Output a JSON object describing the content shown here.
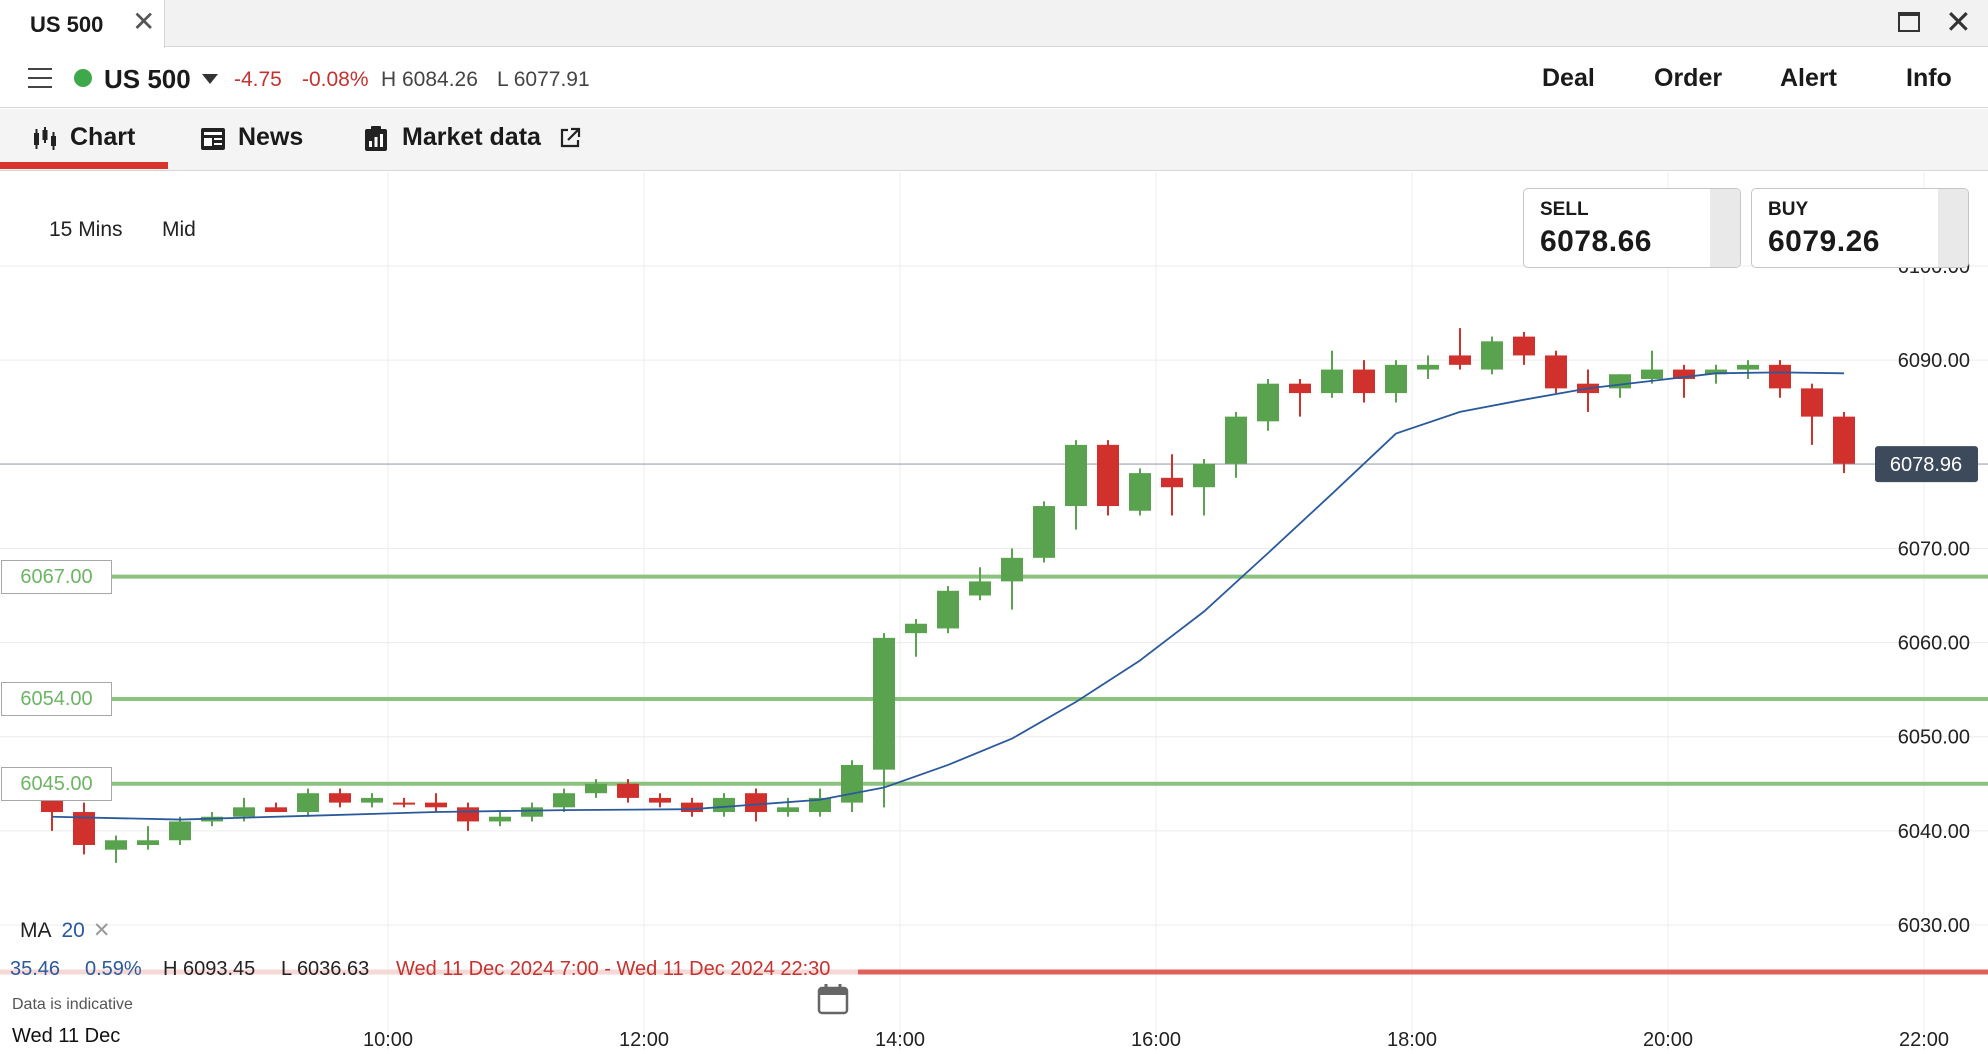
{
  "window": {
    "tab_title": "US 500",
    "close_glyph": "✕"
  },
  "header": {
    "instrument": "US 500",
    "change": "-4.75",
    "change_pct": "-0.08%",
    "high": "H 6084.26",
    "low": "L 6077.91",
    "actions": [
      "Deal",
      "Order",
      "Alert",
      "Info"
    ]
  },
  "subtabs": {
    "chart": "Chart",
    "news": "News",
    "market_data": "Market data"
  },
  "toolbar": {
    "timeframe": "15 Mins",
    "price_type": "Mid"
  },
  "quote": {
    "sell_label": "SELL",
    "sell": "6078.66",
    "buy_label": "BUY",
    "buy": "6079.26"
  },
  "levels": [
    "6067.00",
    "6054.00",
    "6045.00"
  ],
  "indicator": {
    "name": "MA",
    "period": "20",
    "remove_glyph": "✕"
  },
  "range_stats": {
    "change": "35.46",
    "change_pct": "0.59%",
    "high": "H 6093.45",
    "low": "L 6036.63",
    "period": "Wed 11 Dec 2024 7:00 - Wed 11 Dec 2024 22:30"
  },
  "note": "Data is indicative",
  "first_date": "Wed 11 Dec",
  "colors": {
    "up": "#5aa34e",
    "down": "#d0312d",
    "ma": "#2a5a9c",
    "level": "#8ac27e",
    "accent": "#d9342b"
  },
  "chart_data": {
    "type": "candlestick",
    "interval_minutes": 15,
    "ylim": [
      6024,
      6108
    ],
    "y_ticks": [
      "6100.00",
      "6090.00",
      "6070.00",
      "6060.00",
      "6050.00",
      "6040.00",
      "6030.00"
    ],
    "x_ticks": [
      "10:00",
      "12:00",
      "14:00",
      "16:00",
      "18:00",
      "20:00",
      "22:00"
    ],
    "current_price": "6078.96",
    "candles": [
      {
        "t": "07:30",
        "o": 6043.5,
        "h": 6044.5,
        "l": 6040.0,
        "c": 6042.0
      },
      {
        "t": "07:45",
        "o": 6042.0,
        "h": 6043.0,
        "l": 6037.5,
        "c": 6038.5
      },
      {
        "t": "08:00",
        "o": 6038.0,
        "h": 6039.5,
        "l": 6036.6,
        "c": 6039.0
      },
      {
        "t": "08:15",
        "o": 6038.5,
        "h": 6040.5,
        "l": 6038.0,
        "c": 6039.0
      },
      {
        "t": "08:30",
        "o": 6039.0,
        "h": 6041.5,
        "l": 6038.5,
        "c": 6041.0
      },
      {
        "t": "08:45",
        "o": 6041.0,
        "h": 6042.0,
        "l": 6040.5,
        "c": 6041.5
      },
      {
        "t": "09:00",
        "o": 6041.5,
        "h": 6043.5,
        "l": 6041.0,
        "c": 6042.5
      },
      {
        "t": "09:15",
        "o": 6042.5,
        "h": 6043.0,
        "l": 6042.0,
        "c": 6042.0
      },
      {
        "t": "09:30",
        "o": 6042.0,
        "h": 6044.5,
        "l": 6041.5,
        "c": 6044.0
      },
      {
        "t": "09:45",
        "o": 6044.0,
        "h": 6044.5,
        "l": 6042.5,
        "c": 6043.0
      },
      {
        "t": "10:00",
        "o": 6043.0,
        "h": 6044.0,
        "l": 6042.5,
        "c": 6043.5
      },
      {
        "t": "10:15",
        "o": 6043.0,
        "h": 6043.5,
        "l": 6042.5,
        "c": 6042.8
      },
      {
        "t": "10:30",
        "o": 6043.0,
        "h": 6044.0,
        "l": 6042.0,
        "c": 6042.5
      },
      {
        "t": "10:45",
        "o": 6042.5,
        "h": 6043.0,
        "l": 6040.0,
        "c": 6041.0
      },
      {
        "t": "11:00",
        "o": 6041.0,
        "h": 6042.0,
        "l": 6040.5,
        "c": 6041.5
      },
      {
        "t": "11:15",
        "o": 6041.5,
        "h": 6043.0,
        "l": 6041.0,
        "c": 6042.5
      },
      {
        "t": "11:30",
        "o": 6042.5,
        "h": 6044.5,
        "l": 6042.0,
        "c": 6044.0
      },
      {
        "t": "11:45",
        "o": 6044.0,
        "h": 6045.5,
        "l": 6043.5,
        "c": 6045.0
      },
      {
        "t": "12:00",
        "o": 6045.0,
        "h": 6045.5,
        "l": 6043.0,
        "c": 6043.5
      },
      {
        "t": "12:15",
        "o": 6043.5,
        "h": 6044.0,
        "l": 6042.5,
        "c": 6043.0
      },
      {
        "t": "12:30",
        "o": 6043.0,
        "h": 6043.5,
        "l": 6041.5,
        "c": 6042.0
      },
      {
        "t": "12:45",
        "o": 6042.0,
        "h": 6044.0,
        "l": 6041.5,
        "c": 6043.5
      },
      {
        "t": "13:00",
        "o": 6044.0,
        "h": 6044.5,
        "l": 6041.0,
        "c": 6042.0
      },
      {
        "t": "13:15",
        "o": 6042.0,
        "h": 6043.5,
        "l": 6041.5,
        "c": 6042.5
      },
      {
        "t": "13:30",
        "o": 6042.0,
        "h": 6044.5,
        "l": 6041.5,
        "c": 6043.5
      },
      {
        "t": "13:45",
        "o": 6043.0,
        "h": 6047.5,
        "l": 6042.0,
        "c": 6047.0
      },
      {
        "t": "14:00",
        "o": 6046.5,
        "h": 6061.0,
        "l": 6042.5,
        "c": 6060.5
      },
      {
        "t": "14:15",
        "o": 6061.0,
        "h": 6062.5,
        "l": 6058.5,
        "c": 6062.0
      },
      {
        "t": "14:30",
        "o": 6061.5,
        "h": 6066.0,
        "l": 6061.0,
        "c": 6065.5
      },
      {
        "t": "14:45",
        "o": 6065.0,
        "h": 6068.0,
        "l": 6064.5,
        "c": 6066.5
      },
      {
        "t": "15:00",
        "o": 6066.5,
        "h": 6070.0,
        "l": 6063.5,
        "c": 6069.0
      },
      {
        "t": "15:15",
        "o": 6069.0,
        "h": 6075.0,
        "l": 6068.5,
        "c": 6074.5
      },
      {
        "t": "15:30",
        "o": 6074.5,
        "h": 6081.5,
        "l": 6072.0,
        "c": 6081.0
      },
      {
        "t": "15:45",
        "o": 6081.0,
        "h": 6081.5,
        "l": 6073.5,
        "c": 6074.5
      },
      {
        "t": "16:00",
        "o": 6074.0,
        "h": 6078.5,
        "l": 6073.5,
        "c": 6078.0
      },
      {
        "t": "16:15",
        "o": 6077.5,
        "h": 6080.0,
        "l": 6073.5,
        "c": 6076.5
      },
      {
        "t": "16:30",
        "o": 6076.5,
        "h": 6079.5,
        "l": 6073.5,
        "c": 6079.0
      },
      {
        "t": "16:45",
        "o": 6079.0,
        "h": 6084.5,
        "l": 6077.5,
        "c": 6084.0
      },
      {
        "t": "17:00",
        "o": 6083.5,
        "h": 6088.0,
        "l": 6082.5,
        "c": 6087.5
      },
      {
        "t": "17:15",
        "o": 6087.5,
        "h": 6088.0,
        "l": 6084.0,
        "c": 6086.5
      },
      {
        "t": "17:30",
        "o": 6086.5,
        "h": 6091.0,
        "l": 6086.0,
        "c": 6089.0
      },
      {
        "t": "17:45",
        "o": 6089.0,
        "h": 6090.0,
        "l": 6085.5,
        "c": 6086.5
      },
      {
        "t": "18:00",
        "o": 6086.5,
        "h": 6090.0,
        "l": 6085.5,
        "c": 6089.5
      },
      {
        "t": "18:15",
        "o": 6089.0,
        "h": 6090.5,
        "l": 6088.0,
        "c": 6089.5
      },
      {
        "t": "18:30",
        "o": 6090.5,
        "h": 6093.4,
        "l": 6089.0,
        "c": 6089.5
      },
      {
        "t": "18:45",
        "o": 6089.0,
        "h": 6092.5,
        "l": 6088.5,
        "c": 6092.0
      },
      {
        "t": "19:00",
        "o": 6092.5,
        "h": 6093.0,
        "l": 6089.5,
        "c": 6090.5
      },
      {
        "t": "19:15",
        "o": 6090.5,
        "h": 6091.0,
        "l": 6086.5,
        "c": 6087.0
      },
      {
        "t": "19:30",
        "o": 6087.5,
        "h": 6089.0,
        "l": 6084.5,
        "c": 6086.5
      },
      {
        "t": "19:45",
        "o": 6087.0,
        "h": 6088.5,
        "l": 6086.0,
        "c": 6088.5
      },
      {
        "t": "20:00",
        "o": 6088.0,
        "h": 6091.0,
        "l": 6087.5,
        "c": 6089.0
      },
      {
        "t": "20:15",
        "o": 6089.0,
        "h": 6089.5,
        "l": 6086.0,
        "c": 6088.0
      },
      {
        "t": "20:30",
        "o": 6088.5,
        "h": 6089.5,
        "l": 6087.5,
        "c": 6089.0
      },
      {
        "t": "20:45",
        "o": 6089.0,
        "h": 6090.0,
        "l": 6088.0,
        "c": 6089.5
      },
      {
        "t": "21:00",
        "o": 6089.5,
        "h": 6090.0,
        "l": 6086.0,
        "c": 6087.0
      },
      {
        "t": "21:15",
        "o": 6087.0,
        "h": 6087.5,
        "l": 6081.0,
        "c": 6084.0
      },
      {
        "t": "21:30",
        "o": 6084.0,
        "h": 6084.5,
        "l": 6078.0,
        "c": 6079.0
      }
    ],
    "ma_20": [
      [
        "07:30",
        6041.5
      ],
      [
        "08:30",
        6041.2
      ],
      [
        "09:30",
        6041.6
      ],
      [
        "10:30",
        6042.0
      ],
      [
        "11:30",
        6042.2
      ],
      [
        "12:30",
        6042.3
      ],
      [
        "13:30",
        6043.3
      ],
      [
        "14:00",
        6044.6
      ],
      [
        "14:30",
        6047.0
      ],
      [
        "15:00",
        6049.8
      ],
      [
        "15:30",
        6053.7
      ],
      [
        "16:00",
        6058.1
      ],
      [
        "16:30",
        6063.3
      ],
      [
        "17:00",
        6069.5
      ],
      [
        "17:30",
        6075.8
      ],
      [
        "18:00",
        6082.2
      ],
      [
        "18:30",
        6084.5
      ],
      [
        "19:00",
        6085.8
      ],
      [
        "19:30",
        6087.0
      ],
      [
        "20:00",
        6087.8
      ],
      [
        "20:30",
        6088.6
      ],
      [
        "21:00",
        6088.7
      ],
      [
        "21:30",
        6088.6
      ]
    ]
  }
}
